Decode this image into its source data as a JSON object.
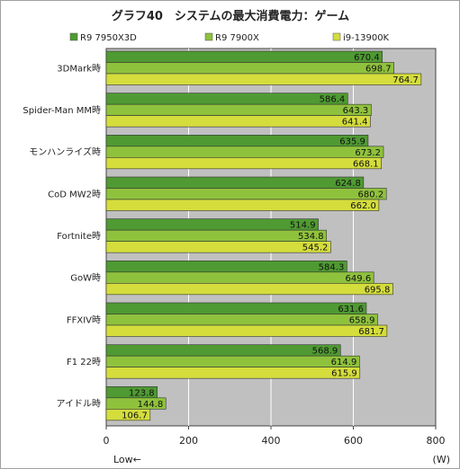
{
  "chart_data": {
    "type": "bar",
    "orientation": "horizontal",
    "title": "グラフ40　システムの最大消費電力：ゲーム",
    "categories": [
      "3DMark時",
      "Spider-Man MM時",
      "モンハンライズ時",
      "CoD MW2時",
      "Fortnite時",
      "GoW時",
      "FFXIV時",
      "F1 22時",
      "アイドル時"
    ],
    "series": [
      {
        "name": "R9 7950X3D",
        "color": "#4f9a32",
        "values": [
          670.4,
          586.4,
          635.9,
          624.8,
          514.9,
          584.3,
          631.6,
          568.9,
          123.8
        ]
      },
      {
        "name": "R9 7900X",
        "color": "#8fc23c",
        "values": [
          698.7,
          643.3,
          673.2,
          680.2,
          534.8,
          649.6,
          658.9,
          614.9,
          144.8
        ]
      },
      {
        "name": "i9-13900K",
        "color": "#d4dd3c",
        "values": [
          764.7,
          641.4,
          668.1,
          662.0,
          545.2,
          695.8,
          681.7,
          615.9,
          106.7
        ]
      }
    ],
    "value_labels": [
      [
        "670.4",
        "586.4",
        "635.9",
        "624.8",
        "514.9",
        "584.3",
        "631.6",
        "568.9",
        "123.8"
      ],
      [
        "698.7",
        "643.3",
        "673.2",
        "680.2",
        "534.8",
        "649.6",
        "658.9",
        "614.9",
        "144.8"
      ],
      [
        "764.7",
        "641.4",
        "668.1",
        "662.0",
        "545.2",
        "695.8",
        "681.7",
        "615.9",
        "106.7"
      ]
    ],
    "xlim": [
      0,
      800
    ],
    "xticks": [
      0,
      200,
      400,
      600,
      800
    ],
    "xtick_labels": [
      "0",
      "200",
      "400",
      "600",
      "800"
    ],
    "axis_note_left": "Low←",
    "unit": "(W)",
    "grid": true,
    "legend_position": "top"
  }
}
